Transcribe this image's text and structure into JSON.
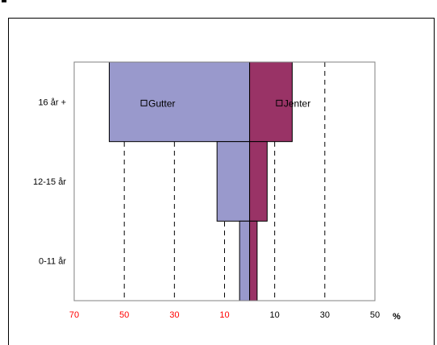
{
  "chart_data": {
    "type": "bar",
    "orientation": "horizontal",
    "style": "population-pyramid",
    "categories": [
      "16 år +",
      "12-15 år",
      "0-11 år"
    ],
    "series": [
      {
        "name": "Gutter",
        "side": "left",
        "color": "#9999CC",
        "values": [
          56,
          13,
          4
        ]
      },
      {
        "name": "Jenter",
        "side": "right",
        "color": "#993366",
        "values": [
          17,
          7,
          3
        ]
      }
    ],
    "x_ticks": [
      {
        "label": "70",
        "value": -70,
        "color": "#FF0000"
      },
      {
        "label": "50",
        "value": -50,
        "color": "#FF0000"
      },
      {
        "label": "30",
        "value": -30,
        "color": "#FF0000"
      },
      {
        "label": "10",
        "value": -10,
        "color": "#FF0000"
      },
      {
        "label": "10",
        "value": 10,
        "color": "#000000"
      },
      {
        "label": "30",
        "value": 30,
        "color": "#000000"
      },
      {
        "label": "50",
        "value": 50,
        "color": "#000000"
      }
    ],
    "unit_label": "%",
    "xlim": [
      -70,
      50
    ],
    "gridlines": "dashed vertical",
    "legend_placement": "inside bars"
  }
}
